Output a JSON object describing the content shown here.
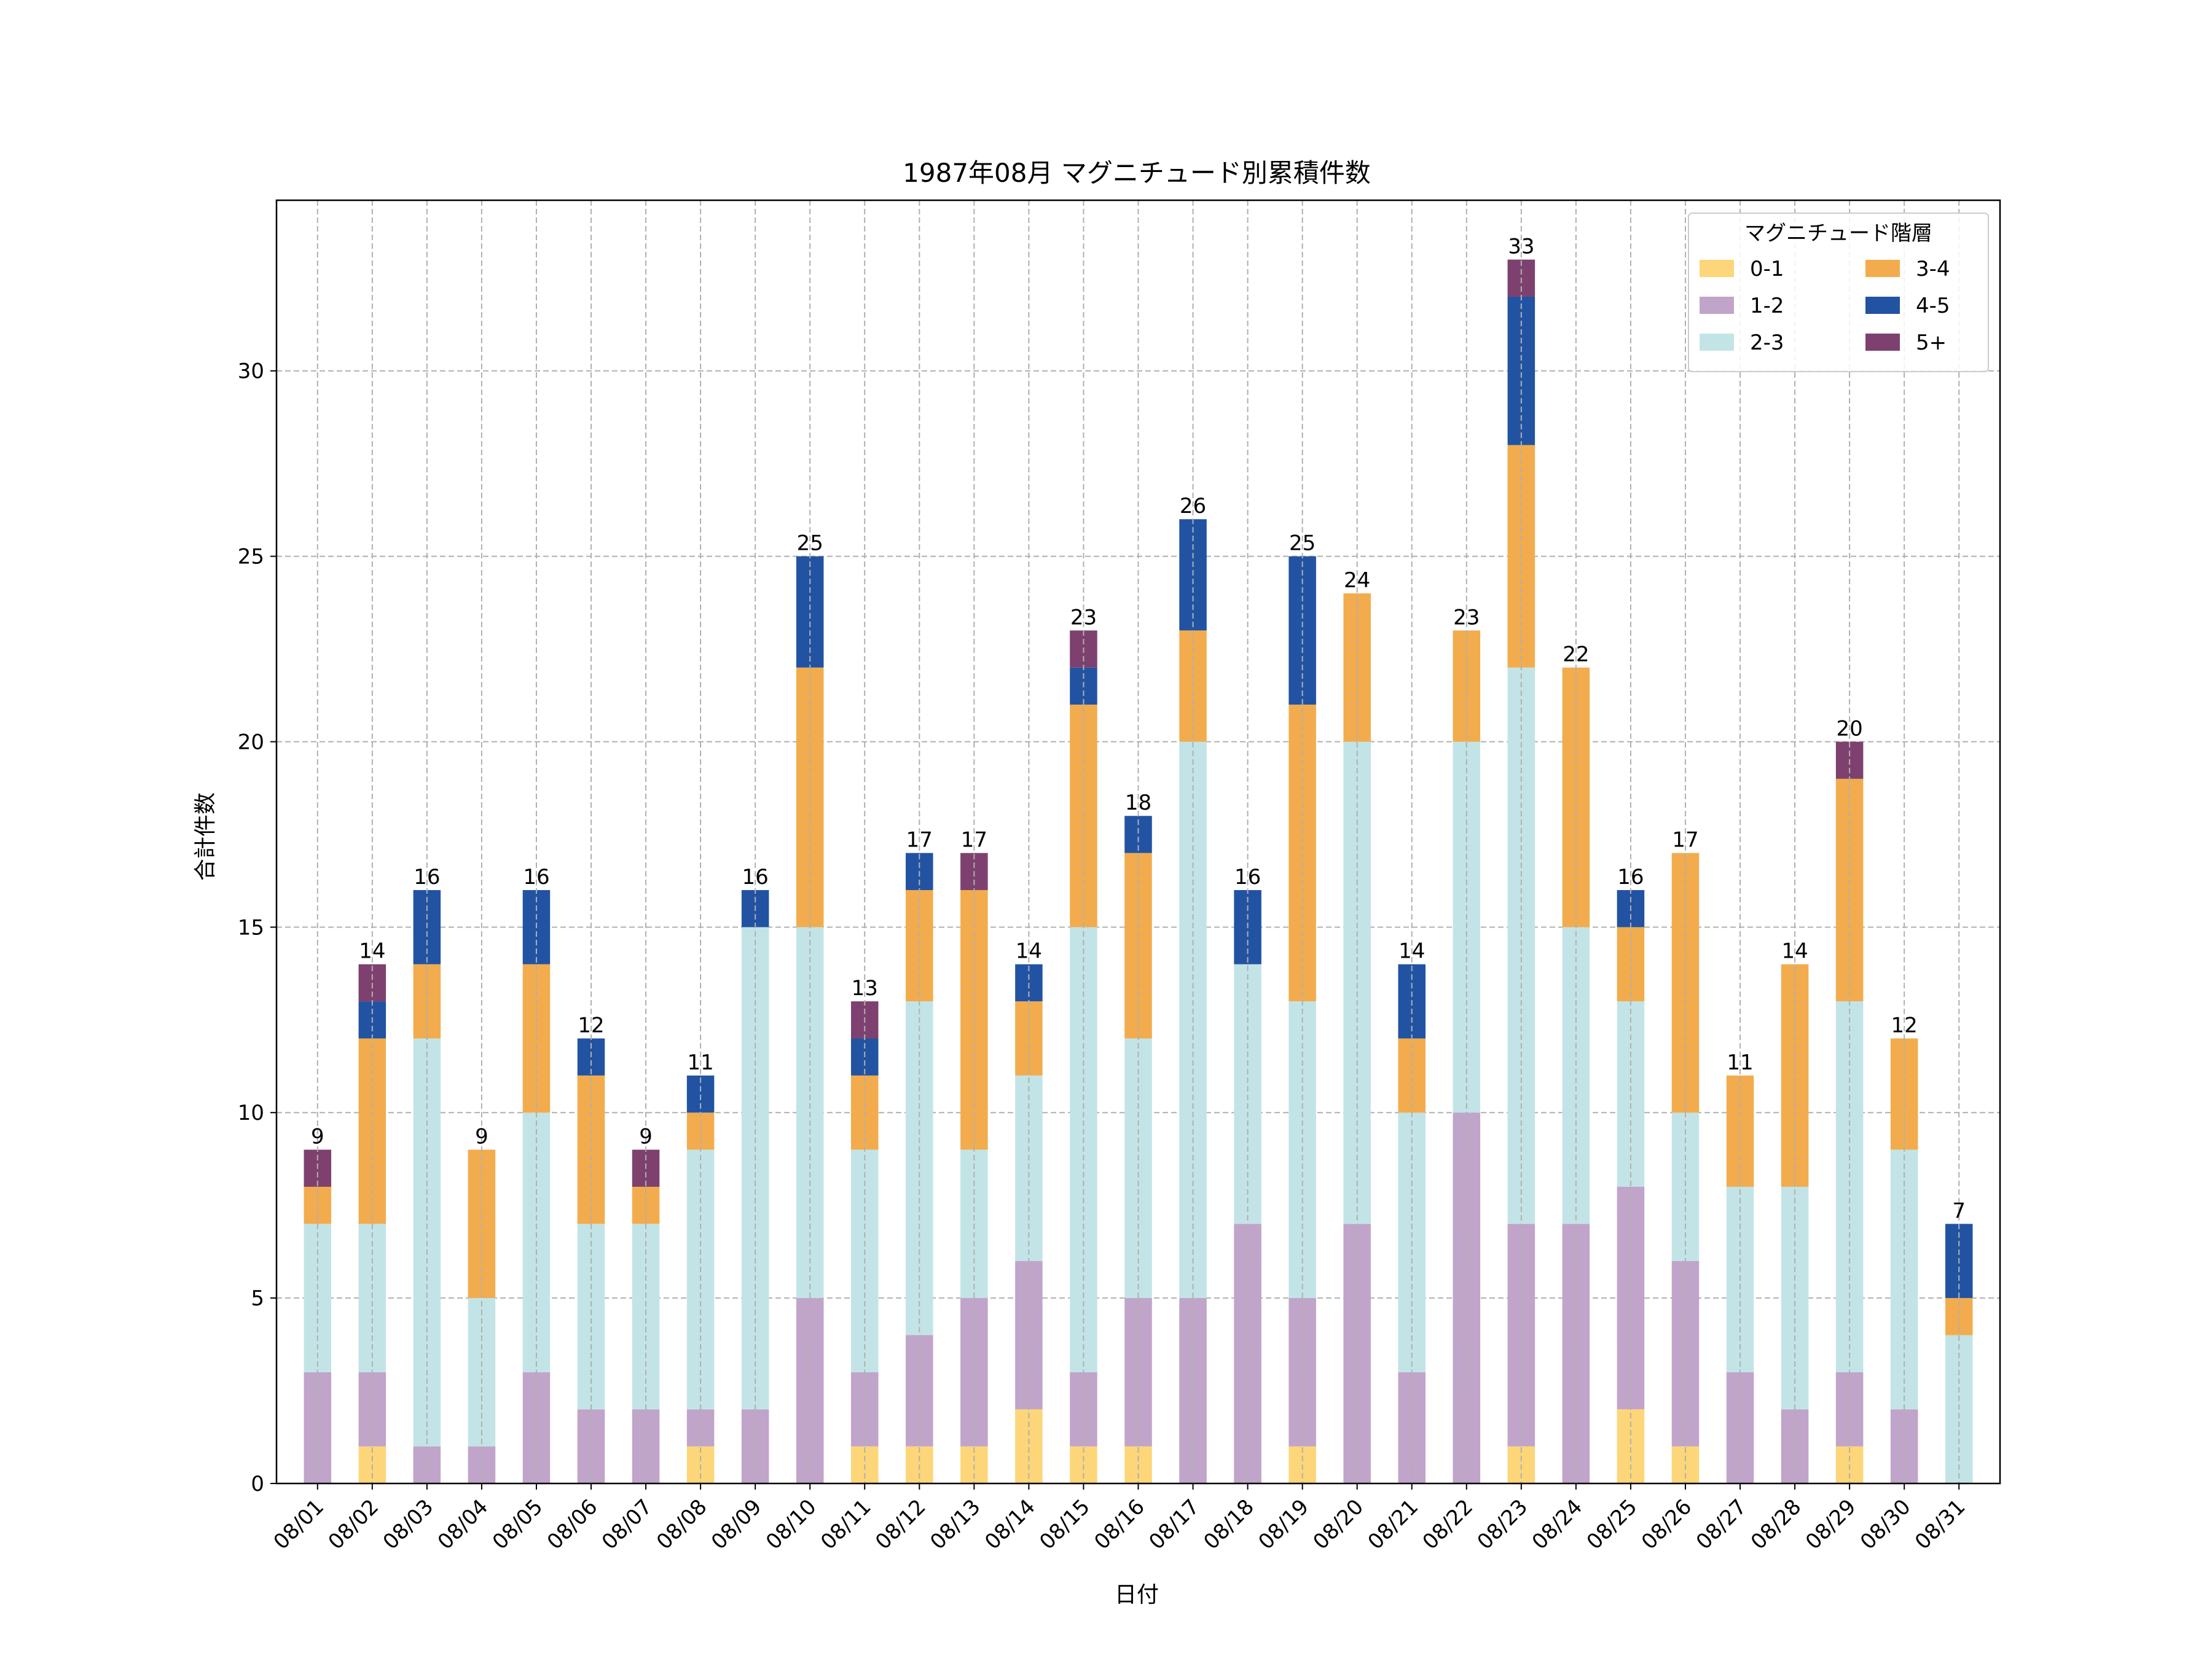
{
  "chart_data": {
    "type": "bar",
    "stacked": true,
    "title": "1987年08月 マグニチュード別累積件数",
    "xlabel": "日付",
    "ylabel": "合計件数",
    "ylim": [
      0,
      34.6
    ],
    "yticks": [
      0,
      5,
      10,
      15,
      20,
      25,
      30
    ],
    "grid": true,
    "legend": {
      "title": "マグニチュード階層",
      "position": "top-right",
      "columns": 2
    },
    "categories": [
      "08/01",
      "08/02",
      "08/03",
      "08/04",
      "08/05",
      "08/06",
      "08/07",
      "08/08",
      "08/09",
      "08/10",
      "08/11",
      "08/12",
      "08/13",
      "08/14",
      "08/15",
      "08/16",
      "08/17",
      "08/18",
      "08/19",
      "08/20",
      "08/21",
      "08/22",
      "08/23",
      "08/24",
      "08/25",
      "08/26",
      "08/27",
      "08/28",
      "08/29",
      "08/30",
      "08/31"
    ],
    "series": [
      {
        "name": "0-1",
        "color": "#fcd679",
        "values": [
          0,
          1,
          0,
          0,
          0,
          0,
          0,
          1,
          0,
          0,
          1,
          1,
          1,
          2,
          1,
          1,
          0,
          0,
          1,
          0,
          0,
          0,
          1,
          0,
          2,
          1,
          0,
          0,
          1,
          0,
          0
        ]
      },
      {
        "name": "1-2",
        "color": "#c1a4c9",
        "values": [
          3,
          2,
          1,
          1,
          3,
          2,
          2,
          1,
          2,
          5,
          2,
          3,
          4,
          4,
          2,
          4,
          5,
          7,
          4,
          7,
          3,
          10,
          6,
          7,
          6,
          5,
          3,
          2,
          2,
          2,
          0
        ]
      },
      {
        "name": "2-3",
        "color": "#c3e4e6",
        "values": [
          4,
          4,
          11,
          4,
          7,
          5,
          5,
          7,
          13,
          10,
          6,
          9,
          4,
          5,
          12,
          7,
          15,
          7,
          8,
          13,
          7,
          10,
          15,
          8,
          5,
          4,
          5,
          6,
          10,
          7,
          4
        ]
      },
      {
        "name": "3-4",
        "color": "#f2ac4d",
        "values": [
          1,
          5,
          2,
          4,
          4,
          4,
          1,
          1,
          0,
          7,
          2,
          3,
          7,
          2,
          6,
          5,
          3,
          0,
          8,
          4,
          2,
          3,
          6,
          7,
          2,
          7,
          3,
          6,
          6,
          3,
          1
        ]
      },
      {
        "name": "4-5",
        "color": "#2253a3",
        "values": [
          0,
          1,
          2,
          0,
          2,
          1,
          0,
          1,
          1,
          3,
          1,
          1,
          0,
          1,
          1,
          1,
          3,
          2,
          4,
          0,
          2,
          0,
          4,
          0,
          1,
          0,
          0,
          0,
          0,
          0,
          2
        ]
      },
      {
        "name": "5+",
        "color": "#7e416f",
        "values": [
          1,
          1,
          0,
          0,
          0,
          0,
          1,
          0,
          0,
          0,
          1,
          0,
          1,
          0,
          1,
          0,
          0,
          0,
          0,
          0,
          0,
          0,
          1,
          0,
          0,
          0,
          0,
          0,
          1,
          0,
          0
        ]
      }
    ],
    "totals": [
      9,
      14,
      16,
      9,
      16,
      12,
      9,
      11,
      16,
      25,
      13,
      17,
      17,
      14,
      23,
      18,
      26,
      16,
      25,
      24,
      14,
      23,
      33,
      22,
      16,
      17,
      11,
      14,
      20,
      12,
      7
    ]
  }
}
